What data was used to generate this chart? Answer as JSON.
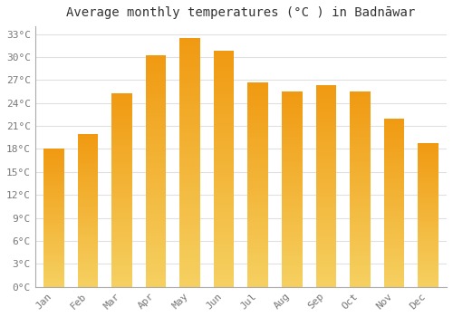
{
  "title": "Average monthly temperatures (°C ) in Badnāwar",
  "months": [
    "Jan",
    "Feb",
    "Mar",
    "Apr",
    "May",
    "Jun",
    "Jul",
    "Aug",
    "Sep",
    "Oct",
    "Nov",
    "Dec"
  ],
  "temperatures": [
    18.0,
    20.0,
    25.3,
    30.2,
    32.5,
    30.8,
    26.7,
    25.5,
    26.3,
    25.5,
    22.0,
    18.8
  ],
  "bar_color_top": "#F5A623",
  "bar_color_bottom": "#F0C040",
  "ylim": [
    0,
    34
  ],
  "ytick_step": 3,
  "background_color": "#ffffff",
  "grid_color": "#e0e0e0",
  "tick_label_color": "#777777",
  "title_color": "#333333",
  "title_fontsize": 10,
  "tick_fontsize": 8,
  "bar_width": 0.6
}
